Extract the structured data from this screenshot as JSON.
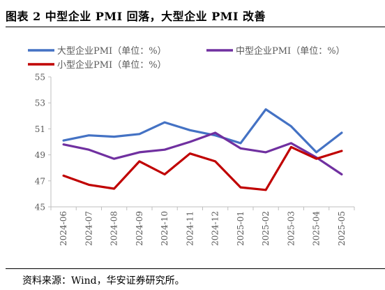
{
  "title": "图表 2  中型企业 PMI 回落，大型企业 PMI 改善",
  "source": "资料来源：Wind，华安证券研究所。",
  "chart_data": {
    "type": "line",
    "categories": [
      "2024-06",
      "2024-07",
      "2024-08",
      "2024-09",
      "2024-10",
      "2024-11",
      "2024-12",
      "2025-01",
      "2025-02",
      "2025-03",
      "2025-04",
      "2025-05"
    ],
    "series": [
      {
        "name": "大型企业PMI（单位：%）",
        "color": "#4472C4",
        "values": [
          50.1,
          50.5,
          50.4,
          50.6,
          51.5,
          50.9,
          50.5,
          49.9,
          52.5,
          51.2,
          49.2,
          50.7
        ]
      },
      {
        "name": "中型企业PMI（单位：%）",
        "color": "#7030A0",
        "values": [
          49.8,
          49.4,
          48.7,
          49.2,
          49.4,
          50.0,
          50.7,
          49.5,
          49.2,
          49.9,
          48.8,
          47.5
        ]
      },
      {
        "name": "小型企业PMI（单位：%）",
        "color": "#C00000",
        "values": [
          47.4,
          46.7,
          46.4,
          48.5,
          47.5,
          49.1,
          48.5,
          46.5,
          46.3,
          49.6,
          48.7,
          49.3
        ]
      }
    ],
    "yticks": [
      45,
      47,
      49,
      51,
      53,
      55
    ],
    "ylim": [
      45,
      55
    ],
    "grid": false,
    "legend": "top"
  }
}
